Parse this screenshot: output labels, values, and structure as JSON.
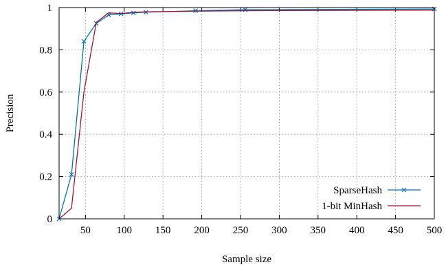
{
  "chart_data": {
    "type": "line",
    "title": "",
    "xlabel": "Sample size",
    "ylabel": "Precision",
    "xlim": [
      16,
      500
    ],
    "ylim": [
      0,
      1
    ],
    "xticks": [
      50,
      100,
      150,
      200,
      250,
      300,
      350,
      400,
      450,
      500
    ],
    "yticks": [
      0,
      0.2,
      0.4,
      0.6,
      0.8,
      1
    ],
    "xtick_labels": [
      "50",
      "100",
      "150",
      "200",
      "250",
      "300",
      "350",
      "400",
      "450",
      "500"
    ],
    "ytick_labels": [
      "0",
      "0.2",
      "0.4",
      "0.6",
      "0.8",
      "1"
    ],
    "grid": true,
    "legend_position": "bottom-right",
    "series": [
      {
        "name": "SparseHash",
        "color": "#0072bd",
        "marker": "x",
        "x": [
          16,
          32,
          48,
          64,
          80,
          96,
          112,
          128,
          192,
          256,
          500
        ],
        "y": [
          0.0,
          0.21,
          0.84,
          0.925,
          0.965,
          0.97,
          0.975,
          0.978,
          0.985,
          0.99,
          0.993
        ]
      },
      {
        "name": "1-bit MinHash",
        "color": "#a2142f",
        "marker": "none",
        "x": [
          16,
          32,
          48,
          64,
          80,
          96,
          112,
          128,
          192,
          256,
          500
        ],
        "y": [
          0.0,
          0.05,
          0.6,
          0.93,
          0.975,
          0.972,
          0.978,
          0.98,
          0.983,
          0.985,
          0.988
        ]
      }
    ]
  }
}
